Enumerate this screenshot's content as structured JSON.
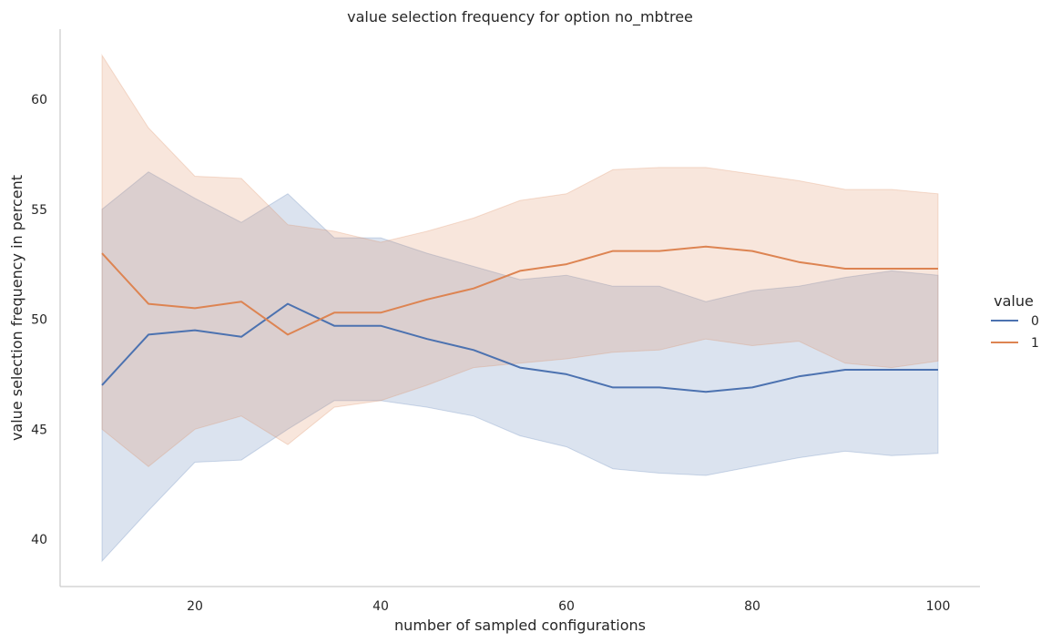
{
  "chart_data": {
    "type": "line",
    "title": "value selection frequency for option no_mbtree",
    "xlabel": "number of sampled configurations",
    "ylabel": "value selection frequency in percent",
    "xlim": [
      5,
      105
    ],
    "ylim": [
      38,
      63
    ],
    "xticks": [
      20,
      40,
      60,
      80,
      100
    ],
    "yticks": [
      40,
      45,
      50,
      55,
      60
    ],
    "grid": false,
    "legend": {
      "title": "value",
      "placement": "right"
    },
    "x": [
      10,
      15,
      20,
      25,
      30,
      35,
      40,
      45,
      50,
      55,
      60,
      65,
      70,
      75,
      80,
      85,
      90,
      95,
      100
    ],
    "series": [
      {
        "name": "0",
        "color": "#4c72b0",
        "values": [
          47.0,
          49.3,
          49.5,
          49.2,
          50.7,
          49.7,
          49.7,
          49.1,
          48.6,
          47.8,
          47.5,
          46.9,
          46.9,
          46.7,
          46.9,
          47.4,
          47.7,
          47.7,
          47.7
        ],
        "ci_low": [
          39.0,
          41.3,
          43.5,
          43.6,
          45.0,
          46.3,
          46.3,
          46.0,
          45.6,
          44.7,
          44.2,
          43.2,
          43.0,
          42.9,
          43.3,
          43.7,
          44.0,
          43.8,
          43.9
        ],
        "ci_high": [
          55.0,
          56.7,
          55.5,
          54.4,
          55.7,
          53.7,
          53.7,
          53.0,
          52.4,
          51.8,
          52.0,
          51.5,
          51.5,
          50.8,
          51.3,
          51.5,
          51.9,
          52.2,
          52.0
        ]
      },
      {
        "name": "1",
        "color": "#dd8452",
        "values": [
          53.0,
          50.7,
          50.5,
          50.8,
          49.3,
          50.3,
          50.3,
          50.9,
          51.4,
          52.2,
          52.5,
          53.1,
          53.1,
          53.3,
          53.1,
          52.6,
          52.3,
          52.3,
          52.3
        ],
        "ci_low": [
          45.0,
          43.3,
          45.0,
          45.6,
          44.3,
          46.0,
          46.3,
          47.0,
          47.8,
          48.0,
          48.2,
          48.5,
          48.6,
          49.1,
          48.8,
          49.0,
          48.0,
          47.8,
          48.1
        ],
        "ci_high": [
          62.0,
          58.7,
          56.5,
          56.4,
          54.3,
          54.0,
          53.5,
          54.0,
          54.6,
          55.4,
          55.7,
          56.8,
          56.9,
          56.9,
          56.6,
          56.3,
          55.9,
          55.9,
          55.7
        ]
      }
    ]
  }
}
